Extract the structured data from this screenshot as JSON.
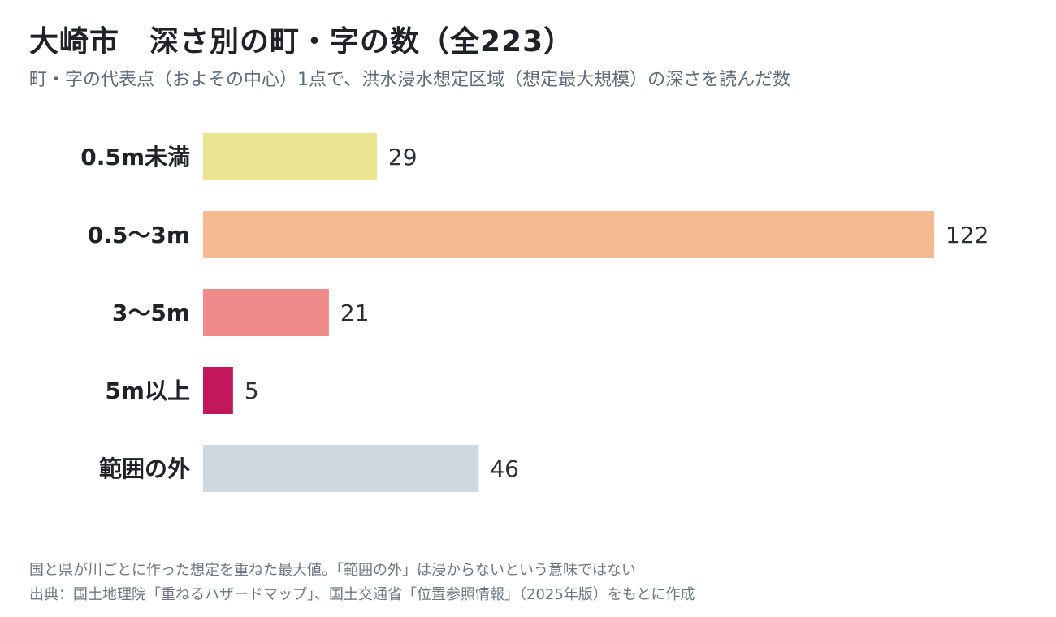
{
  "title": "大崎市　深さ別の町・字の数（全223）",
  "subtitle": "町・字の代表点（およその中心）1点で、洪水浸水想定区域（想定最大規模）の深さを読んだ数",
  "chart_data": {
    "type": "bar",
    "orientation": "horizontal",
    "categories": [
      "0.5m未満",
      "0.5〜3m",
      "3〜5m",
      "5m以上",
      "範囲の外"
    ],
    "values": [
      29,
      122,
      21,
      5,
      46
    ],
    "colors": [
      "#e8e48f",
      "#f4ba91",
      "#ef8a8b",
      "#c2185b",
      "#cfd8de"
    ],
    "xlim": [
      0,
      122
    ],
    "grid": false,
    "legend": "none"
  },
  "notes": {
    "line1": "国と県が川ごとに作った想定を重ねた最大値。「範囲の外」は浸からないという意味ではない",
    "line2": "出典：国土地理院「重ねるハザードマップ」、国土交通省「位置参照情報」（2025年版）をもとに作成"
  }
}
